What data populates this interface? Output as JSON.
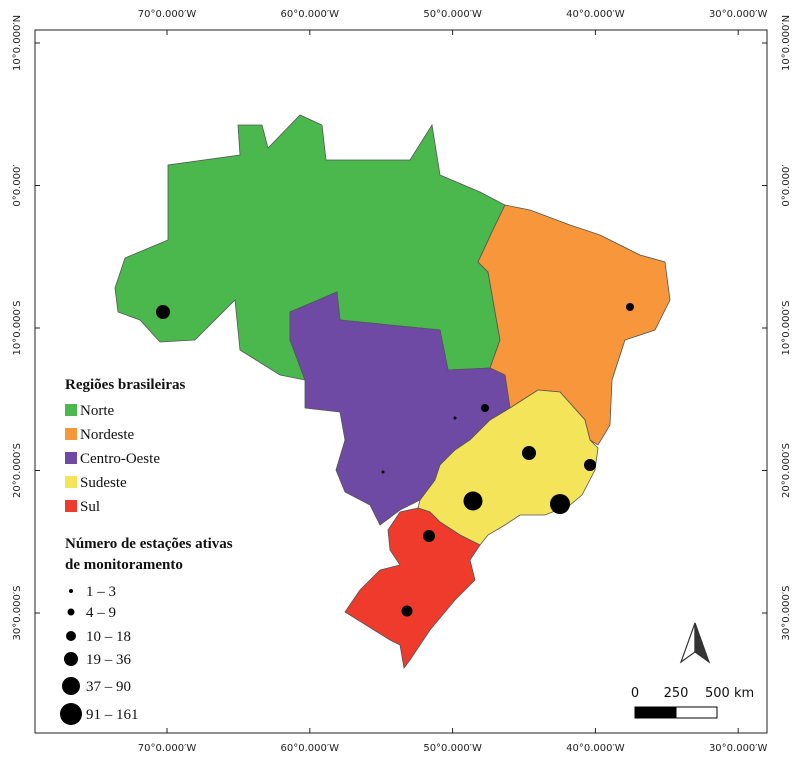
{
  "graticule": {
    "lon_labels": [
      "70°0.000′W",
      "60°0.000′W",
      "50°0.000′W",
      "40°0.000′W",
      "30°0.000′W"
    ],
    "lat_labels": [
      "10°0.000′N",
      "0°0.000′",
      "10°0.000′S",
      "20°0.000′S",
      "30°0.000′S"
    ]
  },
  "regions_legend": {
    "title": "Regiões brasileiras",
    "items": [
      {
        "name": "Norte",
        "color": "#4bb84e"
      },
      {
        "name": "Nordeste",
        "color": "#f7963a"
      },
      {
        "name": "Centro-Oeste",
        "color": "#6e4aa5"
      },
      {
        "name": "Sudeste",
        "color": "#f4e45a"
      },
      {
        "name": "Sul",
        "color": "#ef3b2c"
      }
    ]
  },
  "stations_legend": {
    "title_lines": [
      "Número de estações ativas",
      "de monitoramento"
    ],
    "classes": [
      "1 – 3",
      "4 – 9",
      "10 – 18",
      "19 – 36",
      "37 – 90",
      "91 – 161"
    ]
  },
  "scale_bar": {
    "labels": [
      "0",
      "250",
      "500 km"
    ]
  }
}
